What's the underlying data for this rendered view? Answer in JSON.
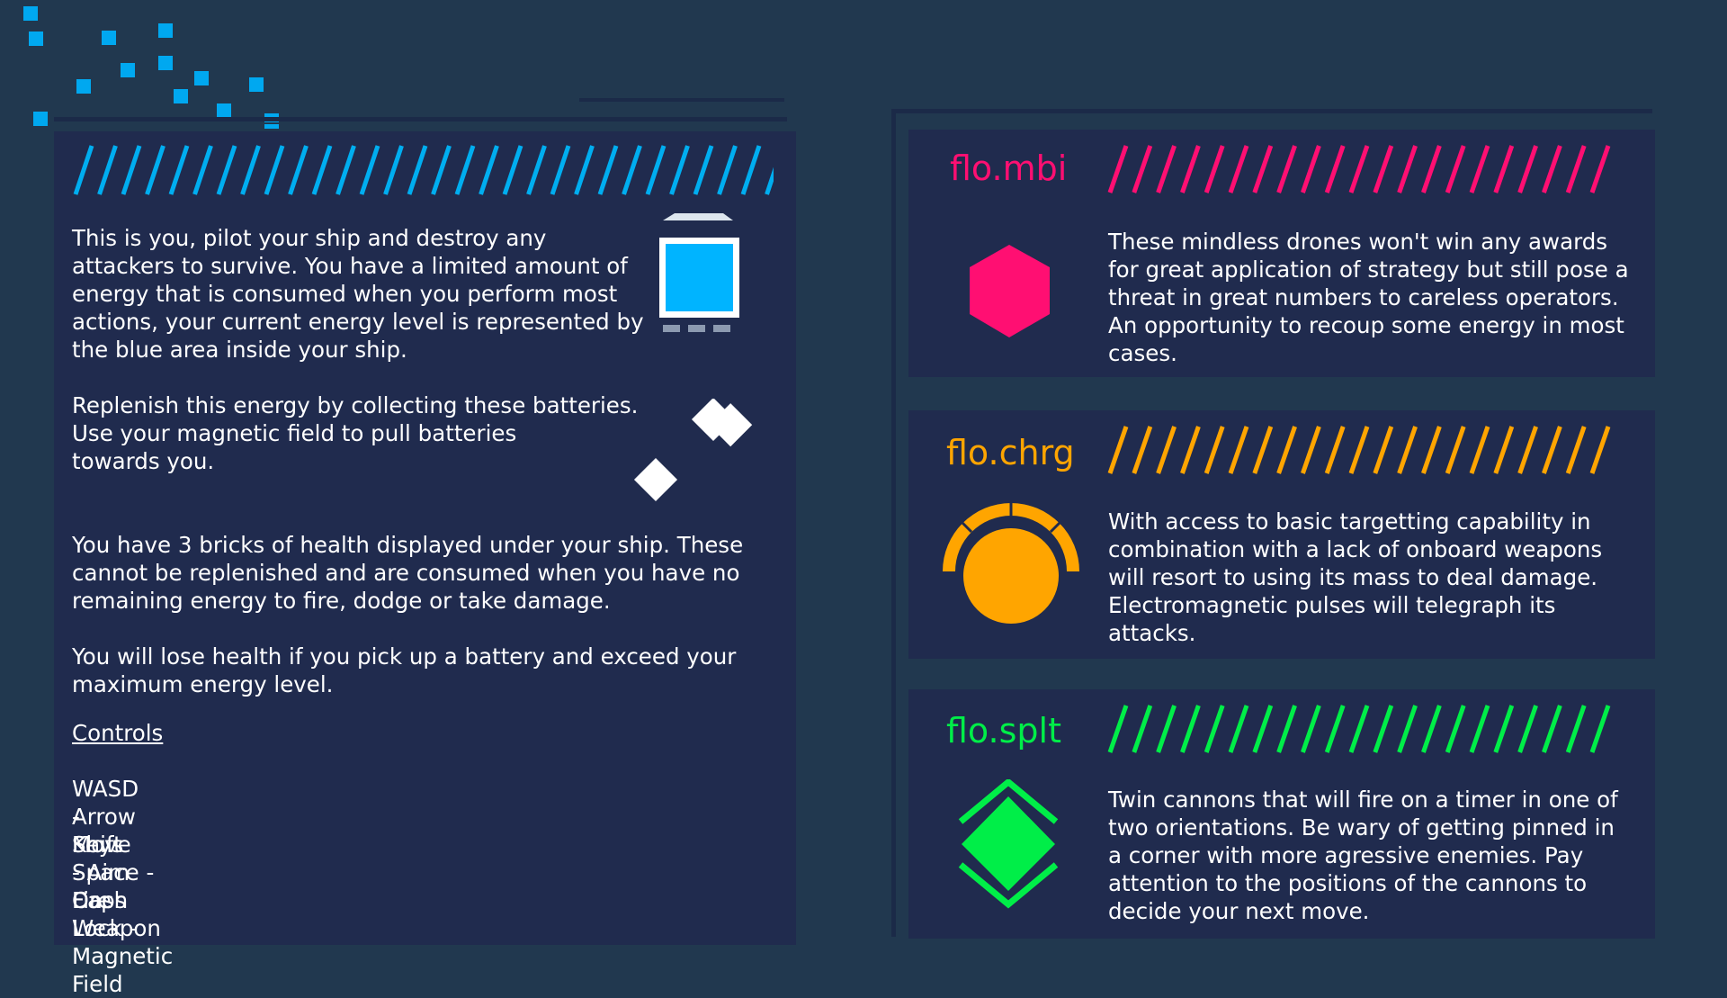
{
  "player": {
    "paragraph_intro": "This is you, pilot your ship and destroy any\nattackers to survive. You have a limited amount of\nenergy that is consumed when you perform most\nactions, your current energy level is represented by\nthe blue area inside your ship.",
    "paragraph_batteries": "Replenish this energy by collecting these batteries.\nUse your magnetic field to pull batteries\ntowards you.",
    "paragraph_health": "You have 3 bricks of health displayed under your ship. These\ncannot be replenished and are consumed when you have no\nremaining energy to fire, dodge or take damage.",
    "paragraph_overcharge": "You will lose health if you pick up a battery and exceed your\nmaximum energy level.",
    "ship_icon": "player-ship-icon",
    "battery_icon": "battery-icon"
  },
  "controls": {
    "title": "Controls",
    "items": [
      "WASD - Move",
      "Arrow Keys - Aim",
      "Shift - Dash",
      "Space - Fire Weapon",
      "Caps Lock - Magnetic Field"
    ]
  },
  "enemies": [
    {
      "name": "flo.mbi",
      "color": "#ff0f72",
      "icon": "hexagon-drone-icon",
      "description": "These mindless drones won't win any awards\nfor great application of strategy but still pose a\nthreat in great numbers to careless operators.\nAn opportunity to recoup some energy in most\ncases."
    },
    {
      "name": "flo.chrg",
      "color": "#ffa500",
      "icon": "charger-drone-icon",
      "description": "With access to basic targetting capability in\ncombination with a lack of onboard weapons\nwill resort to using its mass to deal damage.\nElectromagnetic pulses will telegraph its\nattacks."
    },
    {
      "name": "flo.splt",
      "color": "#00ee48",
      "icon": "split-cannon-drone-icon",
      "description": "Twin cannons that will fire on a timer in one of\ntwo orientations. Be wary of getting pinned in\na corner with more agressive enemies. Pay\nattention to the positions of the cannons to\ndecide your next move."
    }
  ],
  "colors": {
    "background": "#21384f",
    "panel": "#202b4e",
    "player_accent": "#00b4ff",
    "pixel_decor": "#00a8f0"
  }
}
